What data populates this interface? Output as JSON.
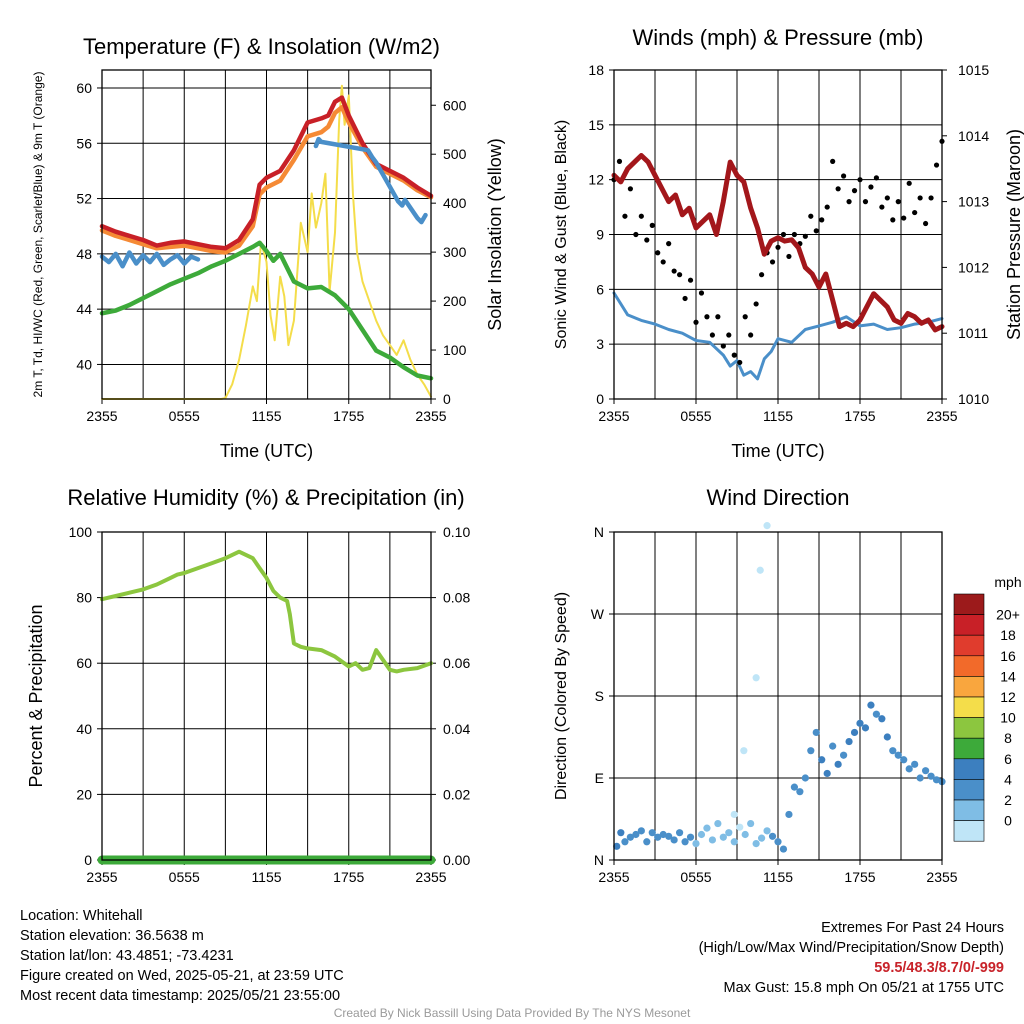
{
  "chart_data": [
    {
      "type": "line",
      "title": "Temperature (F) & Insolation (W/m2)",
      "xlabel": "Time (UTC)",
      "ylabel": "2m T, Td, HI/WC (Red, Green, Scarlet/Blue) & 9m T (Orange)",
      "y2label": "Solar Insolation (Yellow)",
      "x_ticks": [
        "2355",
        "0555",
        "1155",
        "1755",
        "2355"
      ],
      "xlim": [
        0,
        24
      ],
      "ylim": [
        37.5,
        61.3
      ],
      "y_ticks": [
        40,
        44,
        48,
        52,
        56,
        60
      ],
      "y2lim": [
        0,
        672
      ],
      "y2_ticks": [
        0,
        100,
        200,
        300,
        400,
        500,
        600
      ],
      "series": [
        {
          "name": "2m T",
          "color": "#c82027",
          "axis": "y",
          "x": [
            0,
            1,
            2,
            3,
            4,
            5,
            6,
            7,
            8,
            9,
            10,
            11,
            11.5,
            12,
            13,
            14,
            15,
            16,
            16.5,
            17,
            17.5,
            18,
            19,
            20,
            21,
            22,
            23,
            24
          ],
          "y": [
            50,
            49.6,
            49.3,
            49,
            48.6,
            48.8,
            48.9,
            48.7,
            48.5,
            48.4,
            49,
            50.5,
            53,
            53.5,
            54,
            55.5,
            57.5,
            57.8,
            58,
            59,
            59.3,
            58,
            56,
            54.5,
            54,
            53.5,
            52.8,
            52.2
          ]
        },
        {
          "name": "9m T",
          "color": "#f58a35",
          "axis": "y",
          "x": [
            0,
            1,
            2,
            3,
            4,
            5,
            6,
            7,
            8,
            9,
            10,
            11,
            11.5,
            12,
            13,
            14,
            15,
            16,
            16.5,
            17,
            17.5,
            18,
            19,
            20,
            21,
            22,
            23,
            24
          ],
          "y": [
            49.7,
            49.3,
            49,
            48.7,
            48.4,
            48.5,
            48.6,
            48.4,
            48.2,
            48.1,
            48.6,
            50,
            52.3,
            52.8,
            53.3,
            54.8,
            56.5,
            56.8,
            57.2,
            58.2,
            58.6,
            57.5,
            55.7,
            54.3,
            53.8,
            53.3,
            52.6,
            52.1
          ]
        },
        {
          "name": "Td",
          "color": "#3daa3a",
          "axis": "y",
          "x": [
            0,
            1,
            2,
            3,
            4,
            5,
            6,
            7,
            8,
            9,
            10,
            11,
            11.5,
            12,
            12.5,
            13,
            14,
            15,
            16,
            17,
            18,
            19,
            20,
            21,
            22,
            23,
            24
          ],
          "y": [
            43.7,
            43.9,
            44.3,
            44.8,
            45.3,
            45.8,
            46.2,
            46.6,
            47.1,
            47.5,
            48,
            48.5,
            48.8,
            48.2,
            47.5,
            48,
            46,
            45.5,
            45.6,
            45,
            44,
            42.5,
            41,
            40.5,
            39.8,
            39.2,
            39
          ]
        },
        {
          "name": "HI/WC",
          "color": "#4a8fc9",
          "axis": "y",
          "x": [
            0,
            0.5,
            1,
            1.5,
            2,
            2.5,
            3,
            3.5,
            4,
            4.5,
            5,
            5.5,
            6,
            6.5,
            7
          ],
          "y": [
            47.8,
            47.4,
            48,
            47.1,
            48.1,
            47.3,
            47.9,
            47.4,
            48,
            47.2,
            47.6,
            47.9,
            47.3,
            47.8,
            47.6
          ],
          "x2": [
            15.6,
            15.8,
            16,
            19.4,
            19.7,
            20,
            21.6,
            21.9,
            22.1,
            23,
            23.3,
            23.6
          ],
          "y2": [
            55.8,
            56.3,
            56.1,
            55.5,
            55,
            54.6,
            51.8,
            51.5,
            51.9,
            50.6,
            50.3,
            50.8
          ]
        },
        {
          "name": "Solar Insolation",
          "color": "#f4dd4a",
          "axis": "y2",
          "x": [
            0,
            8.7,
            9,
            9.5,
            10,
            10.5,
            11,
            11.3,
            11.6,
            12,
            12.3,
            12.6,
            13,
            13.3,
            13.6,
            14,
            14.5,
            15,
            15.3,
            15.6,
            16,
            16.3,
            16.6,
            17,
            17.3,
            17.5,
            17.7,
            18,
            18.3,
            18.6,
            19,
            19.5,
            20,
            20.5,
            21,
            21.5,
            22,
            22.5,
            23,
            23.5,
            24
          ],
          "y": [
            0,
            0,
            2,
            30,
            80,
            150,
            230,
            200,
            320,
            280,
            170,
            120,
            250,
            210,
            110,
            160,
            360,
            300,
            420,
            350,
            400,
            460,
            220,
            340,
            570,
            640,
            560,
            620,
            420,
            300,
            240,
            200,
            160,
            130,
            110,
            90,
            120,
            80,
            50,
            30,
            5
          ]
        }
      ]
    },
    {
      "type": "line",
      "title": "Winds (mph) & Pressure (mb)",
      "xlabel": "Time (UTC)",
      "ylabel": "Sonic Wind & Gust (Blue, Black)",
      "y2label": "Station Pressure (Maroon)",
      "x_ticks": [
        "2355",
        "0555",
        "1155",
        "1755",
        "2355"
      ],
      "xlim": [
        0,
        24
      ],
      "ylim": [
        0,
        18
      ],
      "y_ticks": [
        0,
        3,
        6,
        9,
        12,
        15,
        18
      ],
      "y2lim": [
        1010,
        1015
      ],
      "y2_ticks": [
        1010,
        1011,
        1012,
        1013,
        1014,
        1015
      ],
      "series": [
        {
          "name": "Station Pressure",
          "color": "#a3171b",
          "axis": "y2",
          "x": [
            0,
            0.5,
            1,
            2,
            2.5,
            3,
            3.5,
            4,
            4.5,
            5,
            5.5,
            6,
            7,
            7.5,
            8,
            8.5,
            9,
            9.5,
            10,
            10.5,
            11,
            11.5,
            12,
            12.5,
            13,
            13.5,
            14,
            14.5,
            15,
            15.5,
            16,
            16.5,
            17,
            17.5,
            18,
            18.5,
            19,
            19.5,
            20,
            20.5,
            21,
            21.5,
            22,
            22.5,
            23,
            23.5,
            24
          ],
          "y": [
            1013.4,
            1013.3,
            1013.5,
            1013.7,
            1013.6,
            1013.4,
            1013.2,
            1013.0,
            1013.1,
            1012.8,
            1012.9,
            1012.6,
            1012.8,
            1012.5,
            1013.0,
            1013.6,
            1013.4,
            1013.3,
            1012.9,
            1012.6,
            1012.2,
            1012.4,
            1012.45,
            1012.4,
            1012.42,
            1012.3,
            1012.0,
            1011.9,
            1011.7,
            1011.9,
            1011.5,
            1011.1,
            1011.15,
            1011.1,
            1011.2,
            1011.4,
            1011.6,
            1011.5,
            1011.4,
            1011.2,
            1011.15,
            1011.3,
            1011.25,
            1011.15,
            1011.2,
            1011.05,
            1011.1
          ]
        },
        {
          "name": "Sonic Wind",
          "color": "#4a8fc9",
          "axis": "y",
          "x": [
            0,
            1,
            2,
            3,
            4,
            5,
            6,
            7,
            8,
            8.5,
            9,
            9.5,
            10,
            10.5,
            11,
            11.5,
            12,
            13,
            14,
            15,
            16,
            17,
            18,
            19,
            20,
            21,
            22,
            23,
            24
          ],
          "y": [
            5.8,
            4.6,
            4.3,
            4.1,
            3.8,
            3.6,
            3.2,
            3.1,
            2.4,
            1.8,
            2.1,
            1.3,
            1.5,
            1.1,
            2.2,
            2.6,
            3.3,
            3.1,
            3.8,
            4,
            4.2,
            4.5,
            4,
            4.1,
            3.8,
            3.9,
            4.1,
            4.2,
            4.4
          ]
        }
      ],
      "gust_points": {
        "name": "Gust",
        "color": "#000000",
        "x": [
          0,
          0.4,
          0.8,
          1.2,
          1.6,
          2,
          2.4,
          2.8,
          3.2,
          3.6,
          4,
          4.4,
          4.8,
          5.2,
          5.6,
          6,
          6.4,
          6.8,
          7.2,
          7.6,
          8,
          8.4,
          8.8,
          9.2,
          9.6,
          10,
          10.4,
          10.8,
          11.2,
          11.6,
          12,
          12.4,
          12.8,
          13.2,
          13.6,
          14,
          14.4,
          14.8,
          15.2,
          15.6,
          16,
          16.4,
          16.8,
          17.2,
          17.6,
          18,
          18.4,
          18.8,
          19.2,
          19.6,
          20,
          20.4,
          20.8,
          21.2,
          21.6,
          22,
          22.4,
          22.8,
          23.2,
          23.6,
          24
        ],
        "y": [
          12,
          13,
          10,
          11.5,
          9,
          10,
          8.7,
          9.5,
          8,
          7.5,
          8.5,
          7,
          6.8,
          5.5,
          6.5,
          4.2,
          5.8,
          4.5,
          3.5,
          4.5,
          2.9,
          3.5,
          2.4,
          2,
          4.5,
          3.5,
          5.2,
          6.8,
          8,
          7.5,
          8.3,
          9,
          7.8,
          9,
          8.5,
          8.9,
          10,
          9.2,
          9.8,
          10.5,
          13,
          11.5,
          12.2,
          10.8,
          11.4,
          12,
          10.8,
          11.6,
          12.1,
          10.5,
          11,
          9.8,
          10.8,
          9.9,
          11.8,
          10.2,
          11,
          9.6,
          11,
          12.8,
          14.1
        ]
      }
    },
    {
      "type": "line",
      "title": "Relative Humidity (%) & Precipitation (in)",
      "ylabel": "Percent & Precipitation",
      "x_ticks": [
        "2355",
        "0555",
        "1155",
        "1755",
        "2355"
      ],
      "xlim": [
        0,
        24
      ],
      "ylim": [
        0,
        100
      ],
      "y_ticks": [
        0,
        20,
        40,
        60,
        80,
        100
      ],
      "y2lim": [
        0,
        0.1
      ],
      "y2_ticks": [
        "0.00",
        "0.02",
        "0.04",
        "0.06",
        "0.08",
        "0.10"
      ],
      "series": [
        {
          "name": "Relative Humidity",
          "color": "#8cc63f",
          "axis": "y",
          "x": [
            0,
            0.5,
            1,
            2,
            3,
            4,
            5,
            5.5,
            6,
            7,
            8,
            9,
            10,
            11,
            11.5,
            12,
            12.5,
            13,
            13.5,
            13.7,
            14,
            14.5,
            15,
            16,
            17,
            18,
            18.5,
            19,
            19.5,
            20,
            21,
            21.5,
            22,
            23,
            24
          ],
          "y": [
            79.5,
            80,
            80.5,
            81.5,
            82.5,
            84,
            86,
            87,
            87.5,
            89,
            90.5,
            92,
            94,
            92,
            89,
            86,
            82,
            80,
            79,
            75,
            66,
            65,
            64.5,
            64,
            62,
            59,
            60,
            58,
            58.5,
            64,
            58,
            57.5,
            58,
            58.5,
            60
          ]
        },
        {
          "name": "Precipitation",
          "color": "#3daa3a",
          "axis": "y2",
          "x": [
            0,
            24
          ],
          "y": [
            0,
            0
          ]
        }
      ]
    },
    {
      "type": "scatter",
      "title": "Wind Direction",
      "ylabel": "Direction (Colored By Speed)",
      "x_ticks": [
        "2355",
        "0555",
        "1155",
        "1755",
        "2355"
      ],
      "xlim": [
        0,
        24
      ],
      "y_ticks": [
        "N",
        "E",
        "S",
        "W",
        "N"
      ],
      "ylim": [
        0,
        360
      ],
      "colorbar_unit": "mph",
      "colorbar_labels": [
        "0",
        "2",
        "4",
        "6",
        "8",
        "10",
        "12",
        "14",
        "16",
        "18",
        "20+"
      ],
      "colorbar_colors": [
        "#bfe5f7",
        "#7fbde5",
        "#4a8fc9",
        "#3c7fbf",
        "#3daa3a",
        "#8cc63f",
        "#f4dd4a",
        "#f9a63e",
        "#f26a2a",
        "#e03c2d",
        "#c82027",
        "#9c1a1b"
      ],
      "points": {
        "x": [
          0.2,
          0.5,
          0.8,
          1.2,
          1.6,
          2,
          2.4,
          2.8,
          3.2,
          3.6,
          4,
          4.4,
          4.8,
          5.2,
          5.6,
          6,
          6.4,
          6.8,
          7.2,
          7.6,
          8,
          8.4,
          8.8,
          9.2,
          9.6,
          10,
          10.4,
          10.8,
          11.2,
          11.6,
          12,
          12.4,
          12.8,
          13.2,
          13.6,
          14,
          14.4,
          14.8,
          15.2,
          15.6,
          16,
          16.4,
          16.8,
          17.2,
          17.6,
          18,
          18.4,
          18.8,
          19.2,
          19.6,
          20,
          20.4,
          20.8,
          21.2,
          21.6,
          22,
          22.4,
          22.8,
          23.2,
          23.6,
          24,
          9.5,
          10.7,
          11.2,
          10.4,
          8.8
        ],
        "y": [
          15,
          30,
          20,
          25,
          28,
          32,
          20,
          30,
          25,
          28,
          26,
          22,
          30,
          20,
          25,
          18,
          28,
          35,
          22,
          40,
          25,
          30,
          20,
          36,
          28,
          40,
          18,
          24,
          32,
          26,
          20,
          12,
          50,
          80,
          75,
          90,
          120,
          140,
          110,
          95,
          125,
          105,
          115,
          130,
          140,
          150,
          145,
          170,
          160,
          155,
          135,
          120,
          115,
          110,
          100,
          105,
          90,
          98,
          92,
          88,
          86,
          120,
          318,
          367,
          200,
          50
        ],
        "speed": [
          6,
          6,
          5,
          4,
          4,
          4,
          4,
          4,
          4,
          4,
          4,
          4,
          4,
          4,
          4,
          3,
          3,
          2,
          2,
          2,
          3,
          2,
          2,
          1,
          2,
          2,
          2,
          3,
          3,
          4,
          4,
          4,
          4,
          4,
          4,
          5,
          4,
          5,
          6,
          6,
          5,
          6,
          5,
          6,
          7,
          6,
          7,
          6,
          5,
          7,
          6,
          4,
          4,
          5,
          4,
          4,
          4,
          4,
          4,
          4,
          4,
          1,
          1,
          1,
          0,
          1
        ]
      }
    }
  ],
  "footer": {
    "location": "Location: Whitehall",
    "elevation": "Station elevation: 36.5638 m",
    "latlon": "Station lat/lon: 43.4851; -73.4231",
    "created": "Figure created on Wed, 2025-05-21, at 23:59 UTC",
    "recent": "Most recent data timestamp: 2025/05/21 23:55:00",
    "extremes_title": "Extremes For Past 24 Hours",
    "extremes_subtitle": "(High/Low/Max Wind/Precipitation/Snow Depth)",
    "extremes_values": "59.5/48.3/8.7/0/-999",
    "max_gust": "Max Gust: 15.8 mph On 05/21 at 1755 UTC",
    "credit": "Created By Nick Bassill Using Data Provided By The NYS Mesonet"
  }
}
